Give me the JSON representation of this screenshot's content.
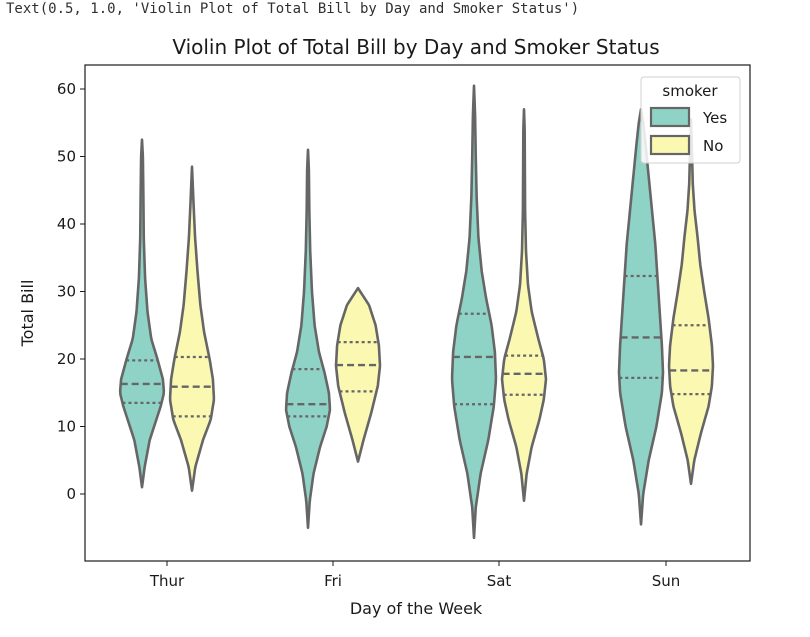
{
  "output_repr": "Text(0.5, 1.0, 'Violin Plot of Total Bill by Day and Smoker Status')",
  "chart_data": {
    "type": "violin",
    "title": "Violin Plot of Total Bill by Day and Smoker Status",
    "xlabel": "Day of the Week",
    "ylabel": "Total Bill",
    "categories": [
      "Thur",
      "Fri",
      "Sat",
      "Sun"
    ],
    "ylim": [
      -10,
      64
    ],
    "yticks": [
      0,
      10,
      20,
      30,
      40,
      50,
      60
    ],
    "inner": "quartile",
    "legend": {
      "title": "smoker",
      "placement": "top-right"
    },
    "colors": {
      "Yes": "#8fd3c7",
      "No": "#fbf8b2",
      "edge": "#666666"
    },
    "series": [
      {
        "name": "Yes",
        "violins": [
          {
            "category": "Thur",
            "min": 1,
            "max": 52.5,
            "q1": 13.5,
            "median": 16.3,
            "q3": 19.8,
            "profile": [
              [
                1,
                0
              ],
              [
                4,
                0.12
              ],
              [
                8,
                0.35
              ],
              [
                11,
                0.65
              ],
              [
                13,
                0.85
              ],
              [
                15,
                1.0
              ],
              [
                17,
                0.95
              ],
              [
                20,
                0.7
              ],
              [
                23,
                0.42
              ],
              [
                27,
                0.25
              ],
              [
                32,
                0.14
              ],
              [
                38,
                0.08
              ],
              [
                45,
                0.06
              ],
              [
                50,
                0.04
              ],
              [
                52.5,
                0
              ]
            ]
          },
          {
            "category": "Fri",
            "min": -5,
            "max": 51,
            "q1": 11.5,
            "median": 13.3,
            "q3": 18.5,
            "profile": [
              [
                -5,
                0
              ],
              [
                -1,
                0.08
              ],
              [
                3,
                0.25
              ],
              [
                7,
                0.55
              ],
              [
                10,
                0.85
              ],
              [
                12.5,
                1.0
              ],
              [
                15,
                0.95
              ],
              [
                18,
                0.75
              ],
              [
                21,
                0.5
              ],
              [
                25,
                0.3
              ],
              [
                30,
                0.18
              ],
              [
                36,
                0.1
              ],
              [
                42,
                0.06
              ],
              [
                48,
                0.04
              ],
              [
                51,
                0
              ]
            ]
          },
          {
            "category": "Sat",
            "min": -6.5,
            "max": 60.5,
            "q1": 13.3,
            "median": 20.3,
            "q3": 26.7,
            "profile": [
              [
                -6.5,
                0
              ],
              [
                -2,
                0.08
              ],
              [
                3,
                0.3
              ],
              [
                8,
                0.65
              ],
              [
                13,
                0.9
              ],
              [
                17,
                1.0
              ],
              [
                21,
                0.95
              ],
              [
                25,
                0.8
              ],
              [
                29,
                0.55
              ],
              [
                33,
                0.35
              ],
              [
                38,
                0.2
              ],
              [
                44,
                0.12
              ],
              [
                50,
                0.08
              ],
              [
                56,
                0.05
              ],
              [
                60.5,
                0
              ]
            ]
          },
          {
            "category": "Sun",
            "min": -4.5,
            "max": 57,
            "q1": 17.2,
            "median": 23.2,
            "q3": 32.3,
            "profile": [
              [
                -4.5,
                0
              ],
              [
                0,
                0.1
              ],
              [
                5,
                0.35
              ],
              [
                10,
                0.7
              ],
              [
                15,
                0.95
              ],
              [
                18,
                1.0
              ],
              [
                22,
                0.95
              ],
              [
                27,
                0.85
              ],
              [
                32,
                0.75
              ],
              [
                37,
                0.65
              ],
              [
                42,
                0.5
              ],
              [
                47,
                0.35
              ],
              [
                52,
                0.2
              ],
              [
                55,
                0.1
              ],
              [
                57,
                0
              ]
            ]
          }
        ]
      },
      {
        "name": "No",
        "violins": [
          {
            "category": "Thur",
            "min": 0.5,
            "max": 48.5,
            "q1": 11.5,
            "median": 15.9,
            "q3": 20.3,
            "profile": [
              [
                0.5,
                0
              ],
              [
                4,
                0.15
              ],
              [
                8,
                0.5
              ],
              [
                11,
                0.85
              ],
              [
                14,
                1.0
              ],
              [
                17,
                0.95
              ],
              [
                20,
                0.8
              ],
              [
                24,
                0.55
              ],
              [
                28,
                0.38
              ],
              [
                33,
                0.25
              ],
              [
                38,
                0.14
              ],
              [
                43,
                0.07
              ],
              [
                48.5,
                0
              ]
            ]
          },
          {
            "category": "Fri",
            "min": 4.8,
            "max": 30.5,
            "q1": 15.2,
            "median": 19.1,
            "q3": 22.5,
            "profile": [
              [
                4.8,
                0
              ],
              [
                8,
                0.25
              ],
              [
                12,
                0.6
              ],
              [
                16,
                0.9
              ],
              [
                19,
                1.0
              ],
              [
                22,
                0.95
              ],
              [
                25,
                0.8
              ],
              [
                28,
                0.5
              ],
              [
                29.5,
                0.2
              ],
              [
                30.5,
                0
              ]
            ]
          },
          {
            "category": "Sat",
            "min": -1,
            "max": 57,
            "q1": 14.7,
            "median": 17.8,
            "q3": 20.5,
            "profile": [
              [
                -1,
                0
              ],
              [
                3,
                0.12
              ],
              [
                7,
                0.35
              ],
              [
                11,
                0.7
              ],
              [
                14,
                0.9
              ],
              [
                17,
                1.0
              ],
              [
                20,
                0.9
              ],
              [
                23,
                0.65
              ],
              [
                27,
                0.35
              ],
              [
                31,
                0.18
              ],
              [
                36,
                0.09
              ],
              [
                42,
                0.05
              ],
              [
                48,
                0.04
              ],
              [
                54,
                0.03
              ],
              [
                57,
                0
              ]
            ]
          },
          {
            "category": "Sun",
            "min": 1.5,
            "max": 55.5,
            "q1": 14.8,
            "median": 18.3,
            "q3": 25,
            "profile": [
              [
                1.5,
                0
              ],
              [
                5,
                0.15
              ],
              [
                9,
                0.45
              ],
              [
                13,
                0.8
              ],
              [
                16,
                0.95
              ],
              [
                19,
                1.0
              ],
              [
                22,
                0.95
              ],
              [
                26,
                0.8
              ],
              [
                30,
                0.6
              ],
              [
                34,
                0.42
              ],
              [
                38,
                0.3
              ],
              [
                42,
                0.16
              ],
              [
                46,
                0.08
              ],
              [
                50,
                0.05
              ],
              [
                55.5,
                0
              ]
            ]
          }
        ]
      }
    ]
  }
}
